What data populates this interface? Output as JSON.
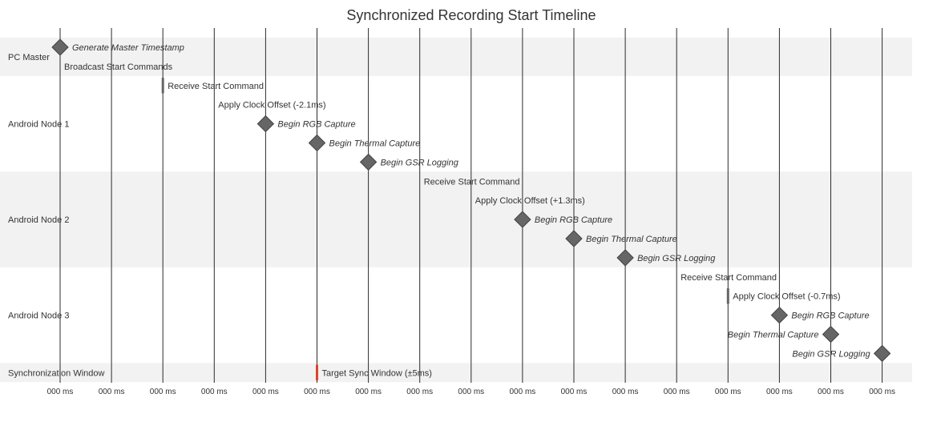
{
  "chart_data": {
    "type": "gantt",
    "title": "Synchronized Recording Start Timeline",
    "x_tick_labels": [
      "000 ms",
      "000 ms",
      "000 ms",
      "000 ms",
      "000 ms",
      "000 ms",
      "000 ms",
      "000 ms",
      "000 ms",
      "000 ms",
      "000 ms",
      "000 ms",
      "000 ms",
      "000 ms",
      "000 ms",
      "000 ms",
      "000 ms"
    ],
    "colors": {
      "milestone": "#666666",
      "milestone_stroke": "#444444",
      "sync_window": "#d9472b",
      "band": "#f2f2f2",
      "grid": "#2b2b2b",
      "text": "#333333"
    },
    "sections": [
      {
        "name": "PC Master",
        "shaded": true,
        "tasks": [
          {
            "label": "Generate Master Timestamp",
            "kind": "milestone",
            "start": 0,
            "label_side": "right"
          },
          {
            "label": "Broadcast Start Commands",
            "kind": "label-only",
            "start": 0,
            "label_side": "right"
          }
        ]
      },
      {
        "name": "Android Node 1",
        "shaded": false,
        "tasks": [
          {
            "label": "Receive Start Command",
            "kind": "short-bar",
            "start": 2,
            "label_side": "right"
          },
          {
            "label": "Apply Clock Offset (-2.1ms)",
            "kind": "label-only",
            "start": 3,
            "label_side": "right"
          },
          {
            "label": "Begin RGB Capture",
            "kind": "milestone",
            "start": 4,
            "label_side": "right"
          },
          {
            "label": "Begin Thermal Capture",
            "kind": "milestone",
            "start": 5,
            "label_side": "right"
          },
          {
            "label": "Begin GSR Logging",
            "kind": "milestone",
            "start": 6,
            "label_side": "right"
          }
        ]
      },
      {
        "name": "Android Node 2",
        "shaded": true,
        "tasks": [
          {
            "label": "Receive Start Command",
            "kind": "label-only",
            "start": 7,
            "label_side": "right"
          },
          {
            "label": "Apply Clock Offset (+1.3ms)",
            "kind": "label-only",
            "start": 8,
            "label_side": "right"
          },
          {
            "label": "Begin RGB Capture",
            "kind": "milestone",
            "start": 9,
            "label_side": "right"
          },
          {
            "label": "Begin Thermal Capture",
            "kind": "milestone",
            "start": 10,
            "label_side": "right"
          },
          {
            "label": "Begin GSR Logging",
            "kind": "milestone",
            "start": 11,
            "label_side": "right"
          }
        ]
      },
      {
        "name": "Android Node 3",
        "shaded": false,
        "tasks": [
          {
            "label": "Receive Start Command",
            "kind": "label-only",
            "start": 12,
            "label_side": "right"
          },
          {
            "label": "Apply Clock Offset (-0.7ms)",
            "kind": "short-bar",
            "start": 13,
            "label_side": "right"
          },
          {
            "label": "Begin RGB Capture",
            "kind": "milestone",
            "start": 14,
            "label_side": "right"
          },
          {
            "label": "Begin Thermal Capture",
            "kind": "milestone",
            "start": 15,
            "label_side": "left"
          },
          {
            "label": "Begin GSR Logging",
            "kind": "milestone",
            "start": 16,
            "label_side": "left"
          }
        ]
      },
      {
        "name": "Synchronization Window",
        "shaded": true,
        "tasks": [
          {
            "label": "Target Sync Window (±5ms)",
            "kind": "critical-bar",
            "start": 5,
            "label_side": "right"
          }
        ]
      }
    ]
  }
}
